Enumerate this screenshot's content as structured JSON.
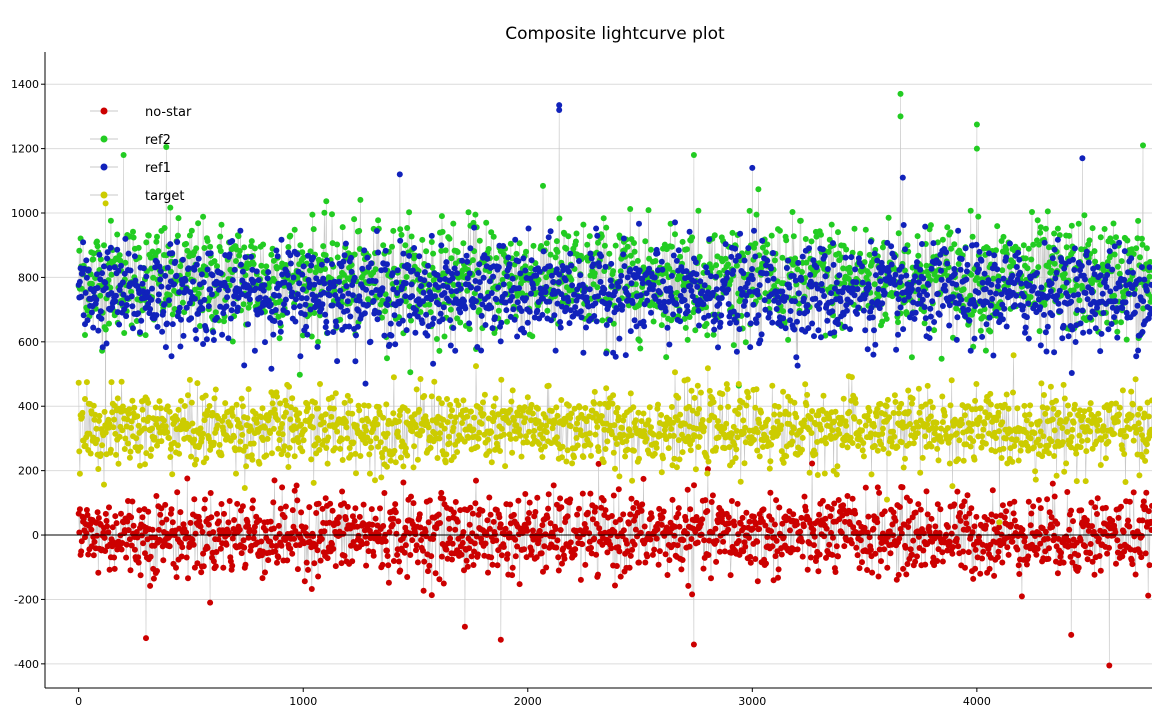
{
  "chart_data": {
    "type": "scatter",
    "title": "Composite lightcurve plot",
    "xlabel": "",
    "ylabel": "",
    "xlim": [
      -150,
      4780
    ],
    "ylim": [
      -475,
      1500
    ],
    "x_ticks": [
      0,
      1000,
      2000,
      3000,
      4000
    ],
    "y_ticks": [
      -400,
      -200,
      0,
      200,
      400,
      600,
      800,
      1000,
      1200,
      1400
    ],
    "x_tick_labels": [
      "0",
      "1000",
      "2000",
      "3000",
      "4000"
    ],
    "y_tick_labels": [
      "-400",
      "-200",
      "0",
      "200",
      "400",
      "600",
      "800",
      "1000",
      "1200",
      "1400"
    ],
    "grid": true,
    "legend_position": "top-left",
    "connecting_line_color": "#c8c8c8",
    "series": [
      {
        "name": "no-star",
        "color": "#cc0000",
        "center": 0,
        "spread": 100,
        "n_points": 1700,
        "x_range": [
          0,
          4780
        ],
        "outliers": [
          [
            4590,
            -405
          ],
          [
            300,
            -320
          ],
          [
            2740,
            -340
          ],
          [
            1880,
            -325
          ],
          [
            4420,
            -310
          ],
          [
            1720,
            -285
          ]
        ]
      },
      {
        "name": "ref2",
        "color": "#22cc22",
        "center": 800,
        "spread": 140,
        "n_points": 1700,
        "x_range": [
          0,
          4780
        ],
        "outliers": [
          [
            3660,
            1370
          ],
          [
            3660,
            1300
          ],
          [
            4000,
            1275
          ],
          [
            4000,
            1200
          ],
          [
            4740,
            1210
          ],
          [
            390,
            1205
          ],
          [
            200,
            1180
          ],
          [
            2740,
            1180
          ]
        ]
      },
      {
        "name": "ref1",
        "color": "#1122bb",
        "center": 750,
        "spread": 120,
        "n_points": 1700,
        "x_range": [
          0,
          4780
        ],
        "outliers": [
          [
            2140,
            1335
          ],
          [
            2140,
            1320
          ],
          [
            3000,
            1140
          ],
          [
            4470,
            1170
          ],
          [
            1430,
            1120
          ],
          [
            3670,
            1110
          ]
        ]
      },
      {
        "name": "target",
        "color": "#cccc00",
        "center": 330,
        "spread": 95,
        "n_points": 1700,
        "x_range": [
          0,
          4780
        ],
        "outliers": [
          [
            120,
            1030
          ],
          [
            3600,
            110
          ],
          [
            4100,
            40
          ]
        ]
      }
    ]
  }
}
